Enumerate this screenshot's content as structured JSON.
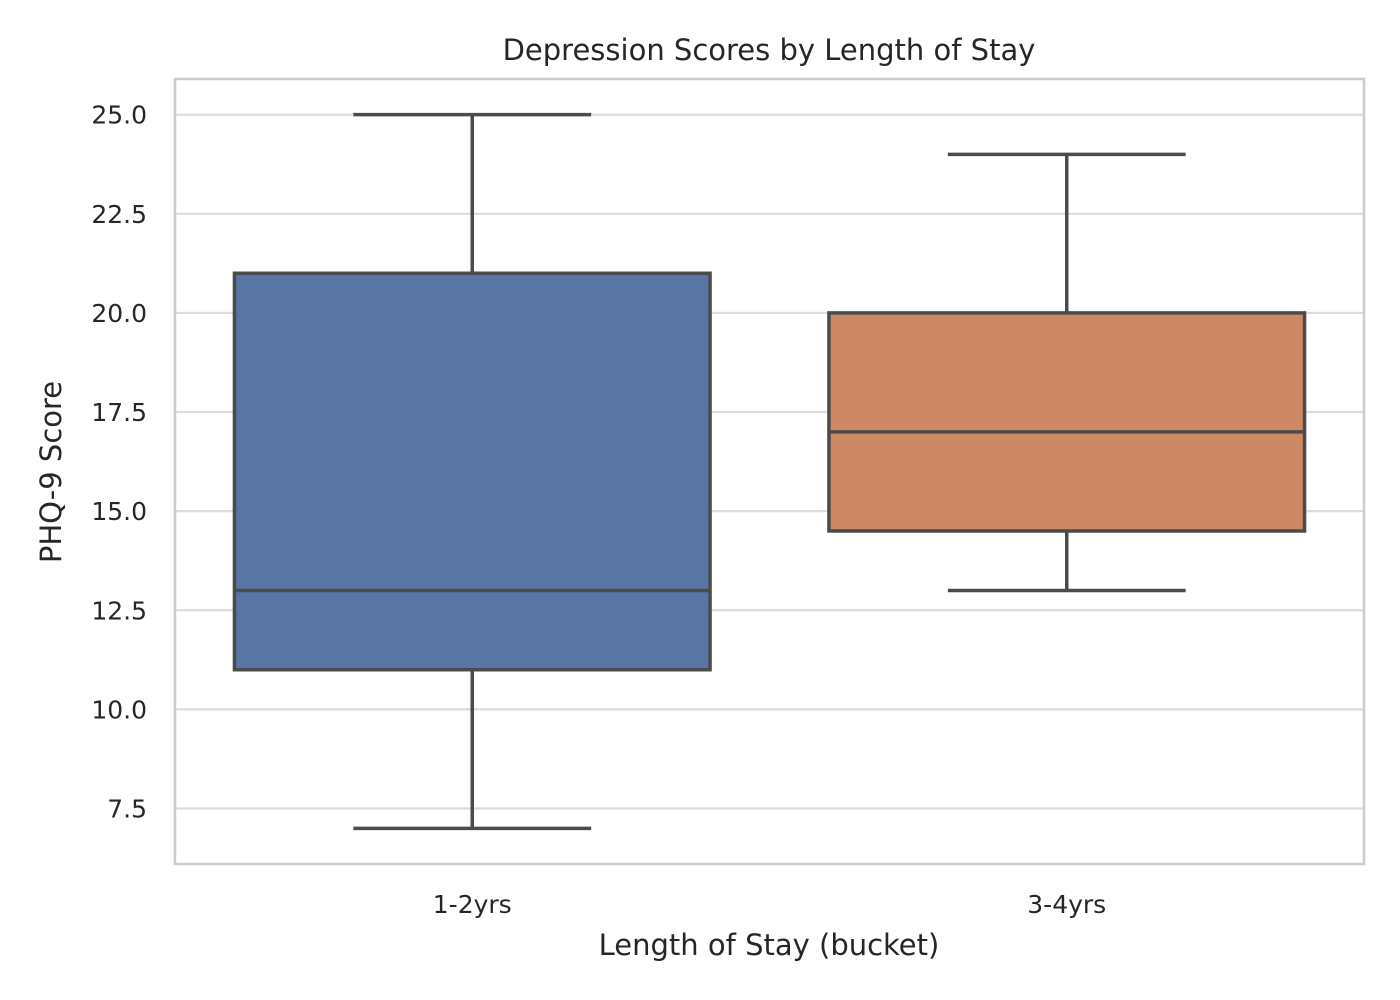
{
  "chart_data": {
    "type": "box",
    "title": "Depression Scores by Length of Stay",
    "xlabel": "Length of Stay (bucket)",
    "ylabel": "PHQ-9 Score",
    "ylim": [
      6.1,
      25.9
    ],
    "yticks": [
      "7.5",
      "10.0",
      "12.5",
      "15.0",
      "17.5",
      "20.0",
      "22.5",
      "25.0"
    ],
    "grid": true,
    "categories": [
      "1-2yrs",
      "3-4yrs"
    ],
    "boxes": [
      {
        "category": "1-2yrs",
        "whisker_low": 7,
        "q1": 11,
        "median": 13,
        "q3": 21,
        "whisker_high": 25,
        "color": "#5875a4"
      },
      {
        "category": "3-4yrs",
        "whisker_low": 13,
        "q1": 14.5,
        "median": 17,
        "q3": 20,
        "whisker_high": 24,
        "color": "#cc8963"
      }
    ]
  }
}
